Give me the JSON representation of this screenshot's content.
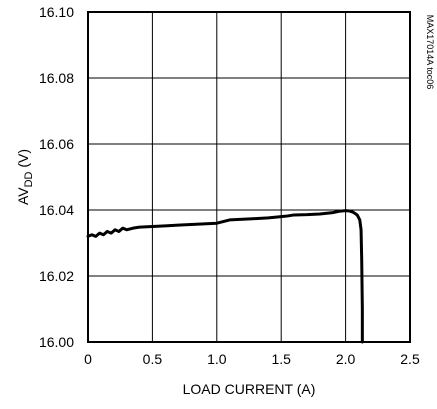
{
  "chart_data": {
    "type": "line",
    "title": "",
    "xlabel": "LOAD  CURRENT (A)",
    "ylabel": {
      "prefix": "AV",
      "subscript": "DD",
      "suffix": " (V)"
    },
    "side_label": "MAX17014A toc06",
    "xlim": [
      0,
      2.5
    ],
    "ylim": [
      16.0,
      16.1
    ],
    "grid": true,
    "legend": "none",
    "x_ticks": [
      "0",
      "0.5",
      "1.0",
      "1.5",
      "2.0",
      "2.5"
    ],
    "y_ticks": [
      "16.10",
      "16.08",
      "16.06",
      "16.04",
      "16.02",
      "16.00"
    ],
    "series": [
      {
        "x": [
          0.0,
          0.03,
          0.06,
          0.09,
          0.12,
          0.15,
          0.18,
          0.21,
          0.24,
          0.27,
          0.3,
          0.35,
          0.4,
          0.5,
          0.6,
          0.7,
          0.8,
          0.9,
          1.0,
          1.05,
          1.1,
          1.2,
          1.3,
          1.4,
          1.5,
          1.55,
          1.6,
          1.7,
          1.8,
          1.9,
          1.95,
          2.0,
          2.03,
          2.06,
          2.09,
          2.11,
          2.12,
          2.125,
          2.13,
          2.13
        ],
        "y": [
          16.032,
          16.0325,
          16.032,
          16.033,
          16.0325,
          16.0335,
          16.033,
          16.034,
          16.0335,
          16.0345,
          16.034,
          16.0345,
          16.0348,
          16.035,
          16.0352,
          16.0354,
          16.0356,
          16.0358,
          16.036,
          16.0365,
          16.037,
          16.0372,
          16.0374,
          16.0376,
          16.038,
          16.0382,
          16.0385,
          16.0386,
          16.0388,
          16.0392,
          16.0396,
          16.0398,
          16.0397,
          16.0393,
          16.0385,
          16.037,
          16.034,
          16.025,
          16.01,
          16.0
        ]
      }
    ],
    "colors": {
      "line": "#000000",
      "grid": "#000000",
      "background": "#ffffff"
    }
  }
}
